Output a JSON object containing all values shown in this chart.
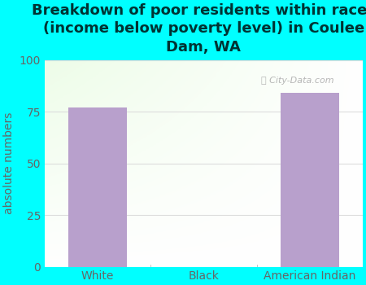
{
  "title": "Breakdown of poor residents within races\n(income below poverty level) in Coulee\nDam, WA",
  "categories": [
    "White",
    "Black",
    "American Indian"
  ],
  "values": [
    77,
    0,
    84
  ],
  "bar_color": "#b8a0cc",
  "ylabel": "absolute numbers",
  "ylim": [
    0,
    100
  ],
  "yticks": [
    0,
    25,
    50,
    75,
    100
  ],
  "background_color": "#00ffff",
  "title_color": "#003333",
  "title_fontsize": 13,
  "axis_label_color": "#666666",
  "tick_label_color": "#666666",
  "grid_color": "#dddddd",
  "watermark": "City-Data.com"
}
